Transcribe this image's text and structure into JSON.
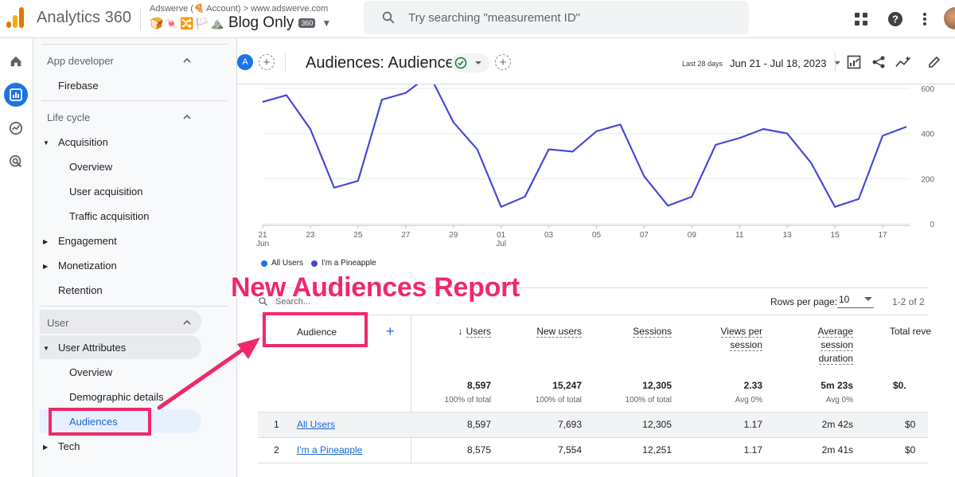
{
  "topbar": {
    "app_title": "Analytics 360",
    "account_line": "Adswerve (🍕 Account) > www.adswerve.com",
    "property_emojis": [
      "🍞",
      "🍬",
      "🔀",
      "🏳️",
      "⛰️"
    ],
    "property_name": "Blog Only",
    "property_badge": "360",
    "search_placeholder": "Try searching \"measurement ID\""
  },
  "sidebar": {
    "sections": [
      {
        "label": "App developer",
        "items": [
          {
            "label": "Firebase"
          }
        ]
      },
      {
        "label": "Life cycle",
        "items": [
          {
            "label": "Acquisition",
            "children": [
              "Overview",
              "User acquisition",
              "Traffic acquisition"
            ]
          },
          {
            "label": "Engagement"
          },
          {
            "label": "Monetization"
          },
          {
            "label": "Retention"
          }
        ]
      },
      {
        "label": "User",
        "items": [
          {
            "label": "User Attributes",
            "children": [
              "Overview",
              "Demographic details",
              "Audiences"
            ]
          },
          {
            "label": "Tech"
          }
        ]
      }
    ],
    "labels": {
      "app_developer": "App developer",
      "firebase": "Firebase",
      "life_cycle": "Life cycle",
      "acquisition": "Acquisition",
      "acq_overview": "Overview",
      "user_acquisition": "User acquisition",
      "traffic_acquisition": "Traffic acquisition",
      "engagement": "Engagement",
      "monetization": "Monetization",
      "retention": "Retention",
      "user": "User",
      "user_attributes": "User Attributes",
      "ua_overview": "Overview",
      "demographic_details": "Demographic details",
      "audiences": "Audiences",
      "tech": "Tech"
    }
  },
  "header": {
    "comparison_chip": "A",
    "title": "Audiences: Audience",
    "date_label": "Last 28 days",
    "date_range": "Jun 21 - Jul 18, 2023"
  },
  "chart_data": {
    "type": "line",
    "x": [
      "21 Jun",
      "22",
      "23",
      "24",
      "25",
      "26",
      "27",
      "28",
      "29",
      "30",
      "01 Jul",
      "02",
      "03",
      "04",
      "05",
      "06",
      "07",
      "08",
      "09",
      "10",
      "11",
      "12",
      "13",
      "14",
      "15",
      "16",
      "17",
      "18"
    ],
    "xticks": [
      {
        "top": "21",
        "bottom": "Jun"
      },
      {
        "top": "23",
        "bottom": ""
      },
      {
        "top": "25",
        "bottom": ""
      },
      {
        "top": "27",
        "bottom": ""
      },
      {
        "top": "29",
        "bottom": ""
      },
      {
        "top": "01",
        "bottom": "Jul"
      },
      {
        "top": "03",
        "bottom": ""
      },
      {
        "top": "05",
        "bottom": ""
      },
      {
        "top": "07",
        "bottom": ""
      },
      {
        "top": "09",
        "bottom": ""
      },
      {
        "top": "11",
        "bottom": ""
      },
      {
        "top": "13",
        "bottom": ""
      },
      {
        "top": "15",
        "bottom": ""
      },
      {
        "top": "17",
        "bottom": ""
      }
    ],
    "yticks": [
      "0",
      "200",
      "400",
      "600"
    ],
    "ylim": [
      0,
      600
    ],
    "series": [
      {
        "name": "All Users",
        "color": "#1a73e8",
        "values": [
          540,
          570,
          420,
          160,
          190,
          550,
          580,
          660,
          450,
          330,
          75,
          120,
          330,
          320,
          410,
          440,
          210,
          80,
          120,
          350,
          380,
          420,
          400,
          270,
          75,
          110,
          390,
          430
        ]
      },
      {
        "name": "I'm a Pineapple",
        "color": "#4a44d6",
        "values": [
          540,
          570,
          420,
          160,
          190,
          550,
          580,
          660,
          450,
          330,
          75,
          120,
          330,
          320,
          410,
          440,
          210,
          80,
          120,
          350,
          380,
          420,
          400,
          270,
          75,
          110,
          390,
          430
        ]
      }
    ]
  },
  "table": {
    "search_placeholder": "Search...",
    "rows_per_page_label": "Rows per page:",
    "rows_per_page_value": "10",
    "pager": "1-2 of 2",
    "audience_header": "Audience",
    "add_column": "+",
    "columns": [
      {
        "label": "Users",
        "sorted": true,
        "total": "8,597",
        "pct": "100% of total"
      },
      {
        "label": "New users",
        "total": "15,247",
        "pct": "100% of total"
      },
      {
        "label": "Sessions",
        "total": "12,305",
        "pct": "100% of total"
      },
      {
        "label_line1": "Views per",
        "label_line2": "session",
        "total": "2.33",
        "pct": "Avg 0%"
      },
      {
        "label_line1": "Average",
        "label_line2": "session",
        "label_line3": "duration",
        "total": "5m 23s",
        "pct": "Avg 0%"
      },
      {
        "label": "Total reve",
        "total": "$0.",
        "pct": ""
      }
    ],
    "rows": [
      {
        "idx": "1",
        "name": "All Users",
        "users": "8,597",
        "new_users": "7,693",
        "sessions": "12,305",
        "views": "1.17",
        "duration": "2m 42s",
        "revenue": "$0"
      },
      {
        "idx": "2",
        "name": "I'm a Pineapple",
        "users": "8,575",
        "new_users": "7,554",
        "sessions": "12,251",
        "views": "1.17",
        "duration": "2m 41s",
        "revenue": "$0"
      }
    ]
  },
  "annotation": {
    "text": "New Audiences Report",
    "color": "#f0286a"
  }
}
